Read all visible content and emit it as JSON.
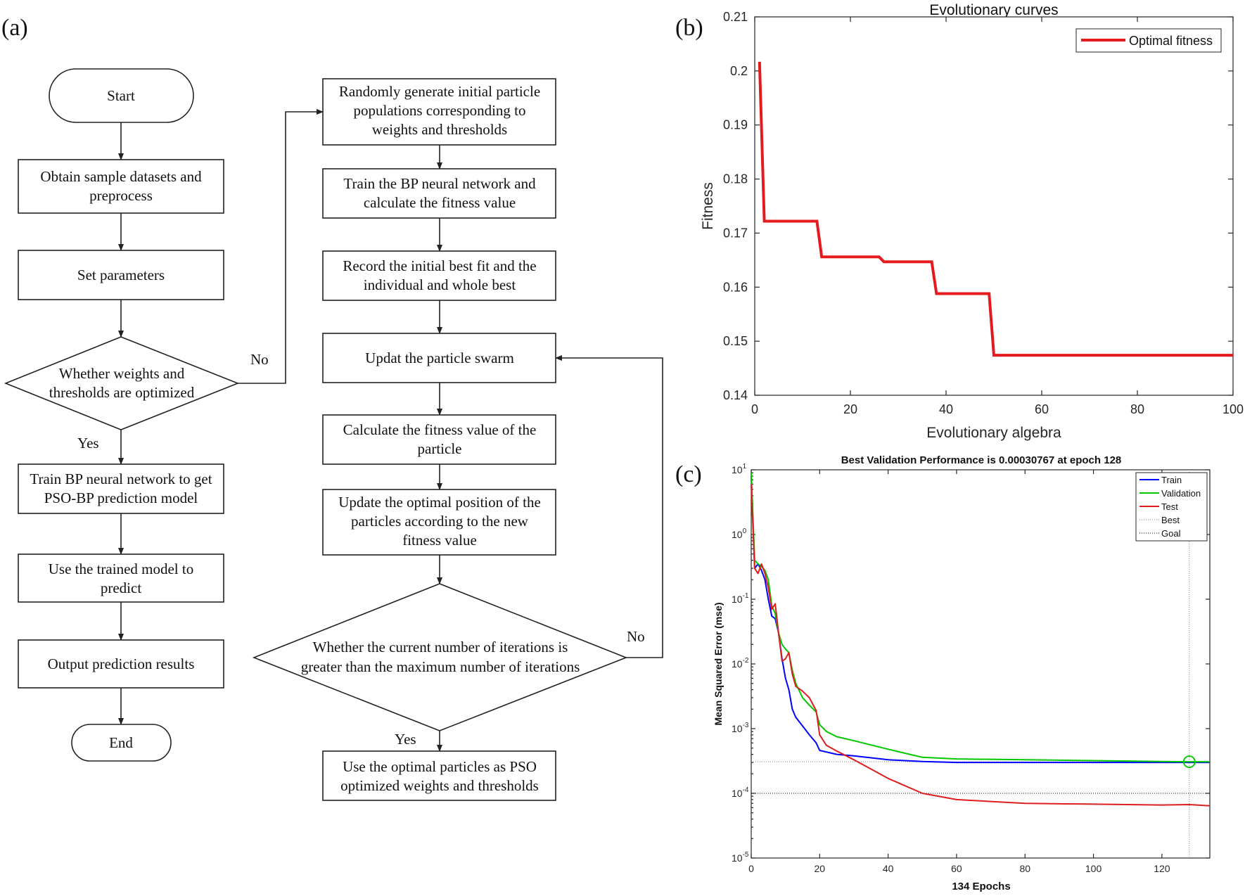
{
  "panels": {
    "a": "(a)",
    "b": "(b)",
    "c": "(c)"
  },
  "flowchart": {
    "left": {
      "start": "Start",
      "obtain": [
        "Obtain sample datasets and",
        "preprocess"
      ],
      "set_params": "Set parameters",
      "decision": [
        "Whether weights and",
        "thresholds are optimized"
      ],
      "yes": "Yes",
      "no": "No",
      "train": [
        "Train BP neural network to get",
        "PSO-BP prediction model"
      ],
      "use_model": [
        "Use the trained model to",
        "predict"
      ],
      "output": "Output prediction results",
      "end": "End"
    },
    "right": {
      "random_init": [
        "Randomly generate initial particle",
        "populations corresponding to",
        "weights and thresholds"
      ],
      "train_bp": [
        "Train the BP neural network and",
        "calculate the fitness value"
      ],
      "record": [
        "Record the initial best fit and the",
        "individual and whole best"
      ],
      "update_swarm": "Updat the particle swarm",
      "calc_fitness": [
        "Calculate the fitness value of the",
        "particle"
      ],
      "update_optimal": [
        "Update the optimal position of the",
        "particles according to the new",
        "fitness value"
      ],
      "decision": [
        "Whether the current number of iterations is",
        "greater than the maximum number of iterations"
      ],
      "no": "No",
      "yes": "Yes",
      "final": [
        "Use the optimal particles as PSO",
        "optimized weights and thresholds"
      ]
    }
  },
  "chart_data": [
    {
      "type": "line",
      "title": "Evolutionary curves",
      "xlabel": "Evolutionary algebra",
      "ylabel": "Fitness",
      "xlim": [
        0,
        100
      ],
      "ylim": [
        0.14,
        0.21
      ],
      "x_ticks": [
        "0",
        "20",
        "40",
        "60",
        "80",
        "100"
      ],
      "y_ticks": [
        "0.14",
        "0.15",
        "0.16",
        "0.17",
        "0.18",
        "0.19",
        "0.2",
        "0.21"
      ],
      "legend_position": "top-right",
      "series": [
        {
          "name": "Optimal fitness",
          "color": "#e41a1c",
          "x": [
            1,
            2,
            13,
            14,
            26,
            27,
            37,
            38,
            49,
            50,
            100
          ],
          "y": [
            0.2017,
            0.1722,
            0.1722,
            0.1656,
            0.1656,
            0.1647,
            0.1647,
            0.1588,
            0.1588,
            0.1474,
            0.1474
          ]
        }
      ]
    },
    {
      "type": "line",
      "title": "Best Validation Performance is 0.00030767 at epoch 128",
      "xlabel": "134 Epochs",
      "ylabel": "Mean Squared Error  (mse)",
      "y_scale": "log",
      "xlim": [
        0,
        134
      ],
      "ylim": [
        1e-05,
        10
      ],
      "x_ticks": [
        "0",
        "20",
        "40",
        "60",
        "80",
        "100",
        "120"
      ],
      "y_tick_bases": [
        "10",
        "10",
        "10",
        "10",
        "10",
        "10",
        "10"
      ],
      "y_tick_exponents": [
        "1",
        "0",
        "-1",
        "-2",
        "-3",
        "-4",
        "-5"
      ],
      "legend_position": "top-right",
      "best_epoch": 128,
      "best_value": 0.00030767,
      "goal": 0.0001,
      "series": [
        {
          "name": "Train",
          "color": "#0000ff",
          "x": [
            0,
            1,
            2,
            3,
            4,
            5,
            6,
            7,
            8,
            9,
            10,
            11,
            12,
            13,
            15,
            17,
            19,
            20,
            25,
            30,
            40,
            50,
            60,
            80,
            100,
            120,
            128,
            134
          ],
          "y": [
            8,
            0.3,
            0.35,
            0.28,
            0.2,
            0.1,
            0.055,
            0.05,
            0.03,
            0.012,
            0.006,
            0.004,
            0.002,
            0.0015,
            0.0011,
            0.0008,
            0.0006,
            0.00046,
            0.0004,
            0.00038,
            0.00033,
            0.00031,
            0.0003,
            0.0003,
            0.0003,
            0.0003,
            0.0003,
            0.0003
          ]
        },
        {
          "name": "Validation",
          "color": "#00c800",
          "x": [
            0,
            1,
            2,
            3,
            4,
            5,
            6,
            7,
            8,
            9,
            10,
            11,
            12,
            13,
            15,
            17,
            19,
            20,
            22,
            25,
            30,
            40,
            50,
            60,
            80,
            100,
            120,
            128,
            134
          ],
          "y": [
            9,
            0.4,
            0.35,
            0.32,
            0.28,
            0.2,
            0.08,
            0.06,
            0.03,
            0.02,
            0.017,
            0.015,
            0.008,
            0.005,
            0.003,
            0.0023,
            0.0018,
            0.00115,
            0.0009,
            0.00075,
            0.00065,
            0.00048,
            0.00036,
            0.00034,
            0.00033,
            0.00032,
            0.00031,
            0.000308,
            0.000308
          ]
        },
        {
          "name": "Test",
          "color": "#dc1e1e",
          "x": [
            0,
            1,
            2,
            3,
            4,
            5,
            6,
            7,
            8,
            9,
            10,
            11,
            12,
            13,
            15,
            17,
            19,
            20,
            22,
            25,
            30,
            40,
            50,
            60,
            80,
            100,
            120,
            128,
            134
          ],
          "y": [
            6,
            0.3,
            0.25,
            0.35,
            0.25,
            0.15,
            0.07,
            0.085,
            0.03,
            0.011,
            0.012,
            0.015,
            0.007,
            0.0045,
            0.0038,
            0.003,
            0.0019,
            0.0008,
            0.00055,
            0.00045,
            0.00033,
            0.00017,
            0.0001,
            8e-05,
            7e-05,
            6.8e-05,
            6.6e-05,
            6.7e-05,
            6.4e-05
          ]
        }
      ],
      "reference_lines": [
        {
          "name": "Best",
          "color": "#808080"
        },
        {
          "name": "Goal",
          "color": "#000000"
        }
      ]
    }
  ]
}
